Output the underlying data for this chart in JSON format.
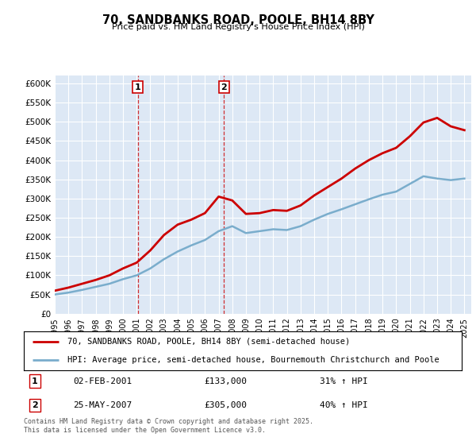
{
  "title": "70, SANDBANKS ROAD, POOLE, BH14 8BY",
  "subtitle": "Price paid vs. HM Land Registry's House Price Index (HPI)",
  "ylabel_ticks": [
    "£0",
    "£50K",
    "£100K",
    "£150K",
    "£200K",
    "£250K",
    "£300K",
    "£350K",
    "£400K",
    "£450K",
    "£500K",
    "£550K",
    "£600K"
  ],
  "ytick_values": [
    0,
    50000,
    100000,
    150000,
    200000,
    250000,
    300000,
    350000,
    400000,
    450000,
    500000,
    550000,
    600000
  ],
  "ylim": [
    0,
    620000
  ],
  "xlim_start": 1995.0,
  "xlim_end": 2025.5,
  "property_color": "#cc0000",
  "hpi_color": "#7aadcc",
  "vline_color": "#cc0000",
  "background_color": "#dde8f5",
  "purchase1": {
    "label": "1",
    "date": "02-FEB-2001",
    "price": 133000,
    "pct": "31%",
    "direction": "↑",
    "x": 2001.09
  },
  "purchase2": {
    "label": "2",
    "date": "25-MAY-2007",
    "price": 305000,
    "pct": "40%",
    "direction": "↑",
    "x": 2007.39
  },
  "legend_property": "70, SANDBANKS ROAD, POOLE, BH14 8BY (semi-detached house)",
  "legend_hpi": "HPI: Average price, semi-detached house, Bournemouth Christchurch and Poole",
  "footer": "Contains HM Land Registry data © Crown copyright and database right 2025.\nThis data is licensed under the Open Government Licence v3.0.",
  "hpi_years": [
    1995,
    1996,
    1997,
    1998,
    1999,
    2000,
    2001,
    2002,
    2003,
    2004,
    2005,
    2006,
    2007,
    2008,
    2009,
    2010,
    2011,
    2012,
    2013,
    2014,
    2015,
    2016,
    2017,
    2018,
    2019,
    2020,
    2021,
    2022,
    2023,
    2024,
    2025
  ],
  "hpi_values": [
    50000,
    55000,
    62000,
    70000,
    78000,
    90000,
    100000,
    118000,
    142000,
    162000,
    178000,
    192000,
    215000,
    228000,
    210000,
    215000,
    220000,
    218000,
    228000,
    245000,
    260000,
    272000,
    285000,
    298000,
    310000,
    318000,
    338000,
    358000,
    352000,
    348000,
    352000
  ],
  "property_years": [
    1995,
    1996,
    1997,
    1998,
    1999,
    2000,
    2001,
    2002,
    2003,
    2004,
    2005,
    2006,
    2007,
    2008,
    2009,
    2010,
    2011,
    2012,
    2013,
    2014,
    2015,
    2016,
    2017,
    2018,
    2019,
    2020,
    2021,
    2022,
    2023,
    2024,
    2025
  ],
  "property_values": [
    60000,
    68000,
    78000,
    88000,
    100000,
    118000,
    133000,
    165000,
    205000,
    232000,
    245000,
    262000,
    305000,
    295000,
    260000,
    262000,
    270000,
    268000,
    282000,
    308000,
    330000,
    352000,
    378000,
    400000,
    418000,
    432000,
    462000,
    498000,
    510000,
    488000,
    478000
  ],
  "xtick_years": [
    1995,
    1996,
    1997,
    1998,
    1999,
    2000,
    2001,
    2002,
    2003,
    2004,
    2005,
    2006,
    2007,
    2008,
    2009,
    2010,
    2011,
    2012,
    2013,
    2014,
    2015,
    2016,
    2017,
    2018,
    2019,
    2020,
    2021,
    2022,
    2023,
    2024,
    2025
  ]
}
